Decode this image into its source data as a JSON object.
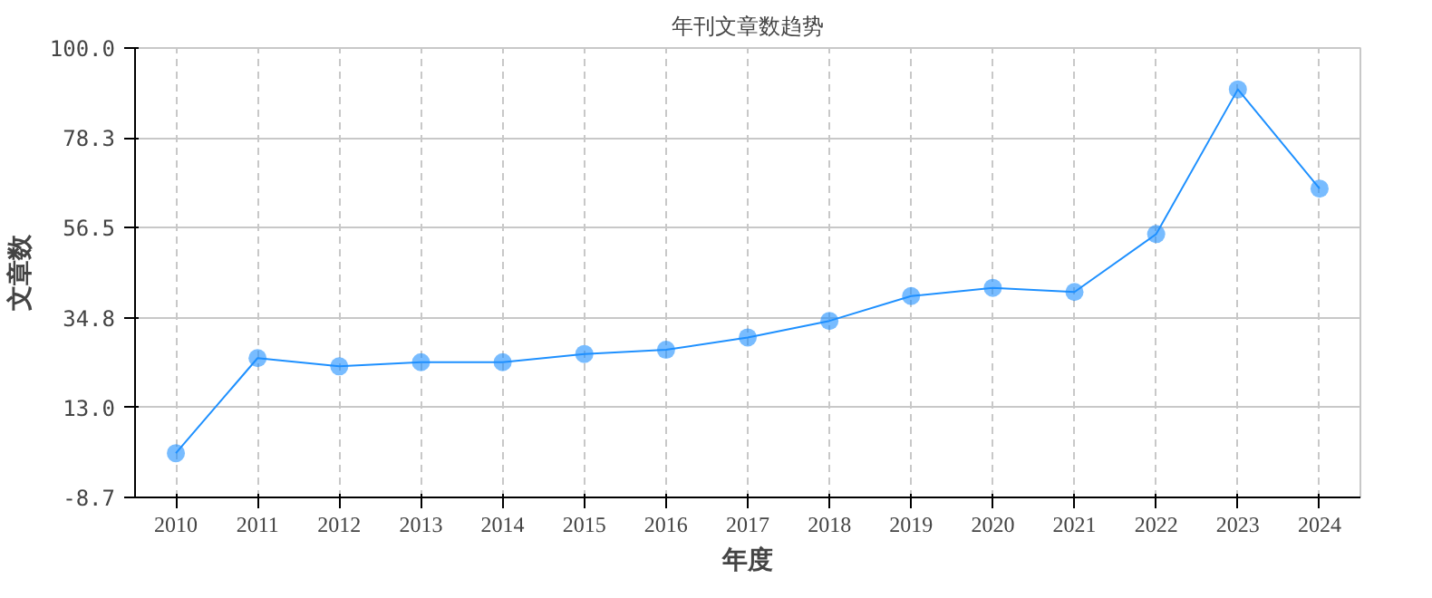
{
  "chart_data": {
    "type": "line",
    "title": "年刊文章数趋势",
    "xlabel": "年度",
    "ylabel": "文章数",
    "categories": [
      "2010",
      "2011",
      "2012",
      "2013",
      "2014",
      "2015",
      "2016",
      "2017",
      "2018",
      "2019",
      "2020",
      "2021",
      "2022",
      "2023",
      "2024"
    ],
    "series": [
      {
        "color": "#1e90ff",
        "values": [
          2,
          25,
          23,
          24,
          24,
          26,
          27,
          30,
          34,
          40,
          42,
          41,
          55,
          90,
          66
        ]
      }
    ],
    "ylim": [
      -8.7,
      100
    ],
    "yticks": [
      {
        "value": -8.7,
        "label": "-8.7"
      },
      {
        "value": 13,
        "label": "13.0"
      },
      {
        "value": 34.8,
        "label": "34.8"
      },
      {
        "value": 56.5,
        "label": "56.5"
      },
      {
        "value": 78.3,
        "label": "78.3"
      },
      {
        "value": 100,
        "label": "100.0"
      }
    ],
    "grid": true,
    "marker": "circle",
    "line_style": "solid"
  }
}
